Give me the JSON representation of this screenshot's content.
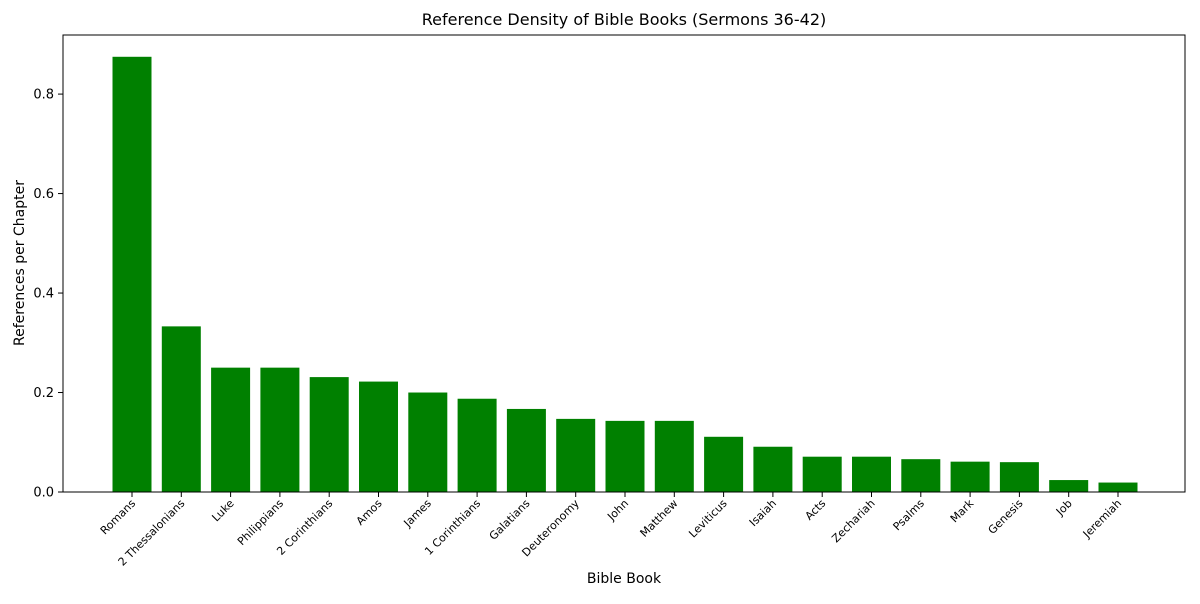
{
  "chart_data": {
    "type": "bar",
    "title": "Reference Density of Bible Books (Sermons 36-42)",
    "xlabel": "Bible Book",
    "ylabel": "References per Chapter",
    "categories": [
      "Romans",
      "2 Thessalonians",
      "Luke",
      "Philippians",
      "2 Corinthians",
      "Amos",
      "James",
      "1 Corinthians",
      "Galatians",
      "Deuteronomy",
      "John",
      "Matthew",
      "Leviticus",
      "Isaiah",
      "Acts",
      "Zechariah",
      "Psalms",
      "Mark",
      "Genesis",
      "Job",
      "Jeremiah"
    ],
    "values": [
      0.875,
      0.333,
      0.25,
      0.25,
      0.231,
      0.222,
      0.2,
      0.1875,
      0.167,
      0.147,
      0.143,
      0.143,
      0.111,
      0.091,
      0.071,
      0.071,
      0.066,
      0.061,
      0.06,
      0.024,
      0.019
    ],
    "yticks": [
      "0.0",
      "0.2",
      "0.4",
      "0.6",
      "0.8"
    ],
    "ytick_values": [
      0,
      0.2,
      0.4,
      0.6,
      0.8
    ],
    "ylim": [
      0,
      0.9188
    ],
    "bar_color": "#008000",
    "grid": false,
    "legend": "none"
  }
}
